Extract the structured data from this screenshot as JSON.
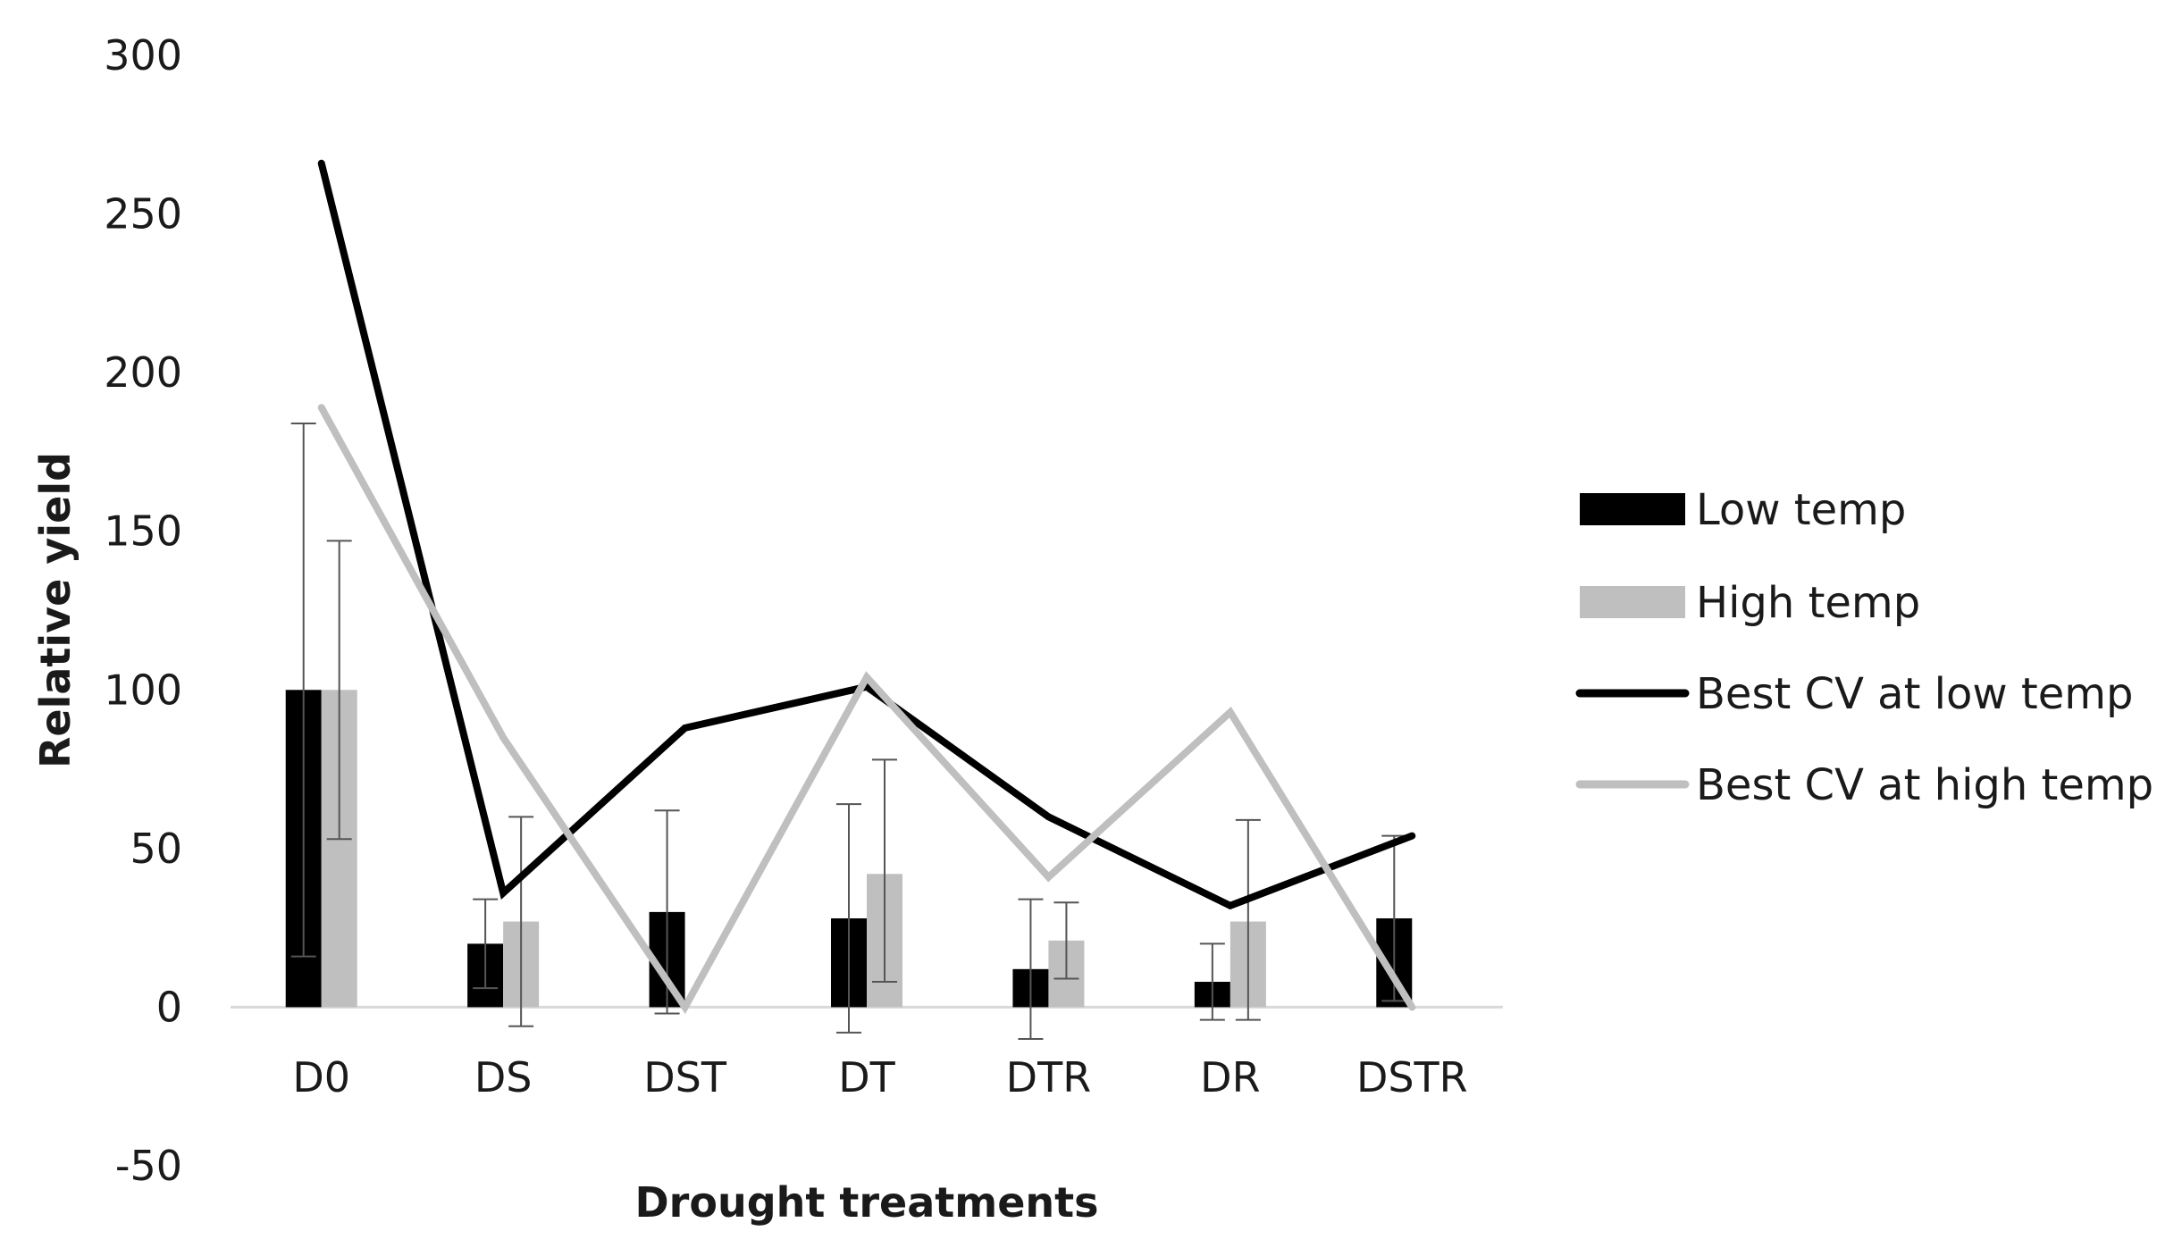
{
  "chart_data": {
    "type": "bar",
    "categories": [
      "D0",
      "DS",
      "DST",
      "DT",
      "DTR",
      "DR",
      "DSTR"
    ],
    "xlabel": "Drought treatments",
    "ylabel": "Relative yield",
    "ylim": [
      -50,
      300
    ],
    "yticks": [
      300,
      250,
      200,
      150,
      100,
      50,
      0,
      -50
    ],
    "grid": false,
    "legend_position": "right",
    "bar_series": [
      {
        "name": "Low temp",
        "color": "#000000",
        "values": [
          100,
          20,
          30,
          28,
          12,
          8,
          28
        ],
        "error_low": [
          16,
          6,
          -2,
          -8,
          -10,
          -4,
          2
        ],
        "error_high": [
          184,
          34,
          62,
          64,
          34,
          20,
          54
        ]
      },
      {
        "name": "High temp",
        "color": "#bfbfbf",
        "values": [
          100,
          27,
          null,
          42,
          21,
          27,
          null
        ],
        "error_low": [
          53,
          -6,
          null,
          8,
          9,
          -4,
          null
        ],
        "error_high": [
          147,
          60,
          null,
          78,
          33,
          59,
          null
        ]
      }
    ],
    "line_series": [
      {
        "name": "Best CV at low temp",
        "color": "#000000",
        "values": [
          266,
          36,
          88,
          101,
          60,
          32,
          54
        ]
      },
      {
        "name": "Best CV at high temp",
        "color": "#bfbfbf",
        "values": [
          189,
          85,
          0,
          104,
          41,
          93,
          0
        ]
      }
    ]
  }
}
